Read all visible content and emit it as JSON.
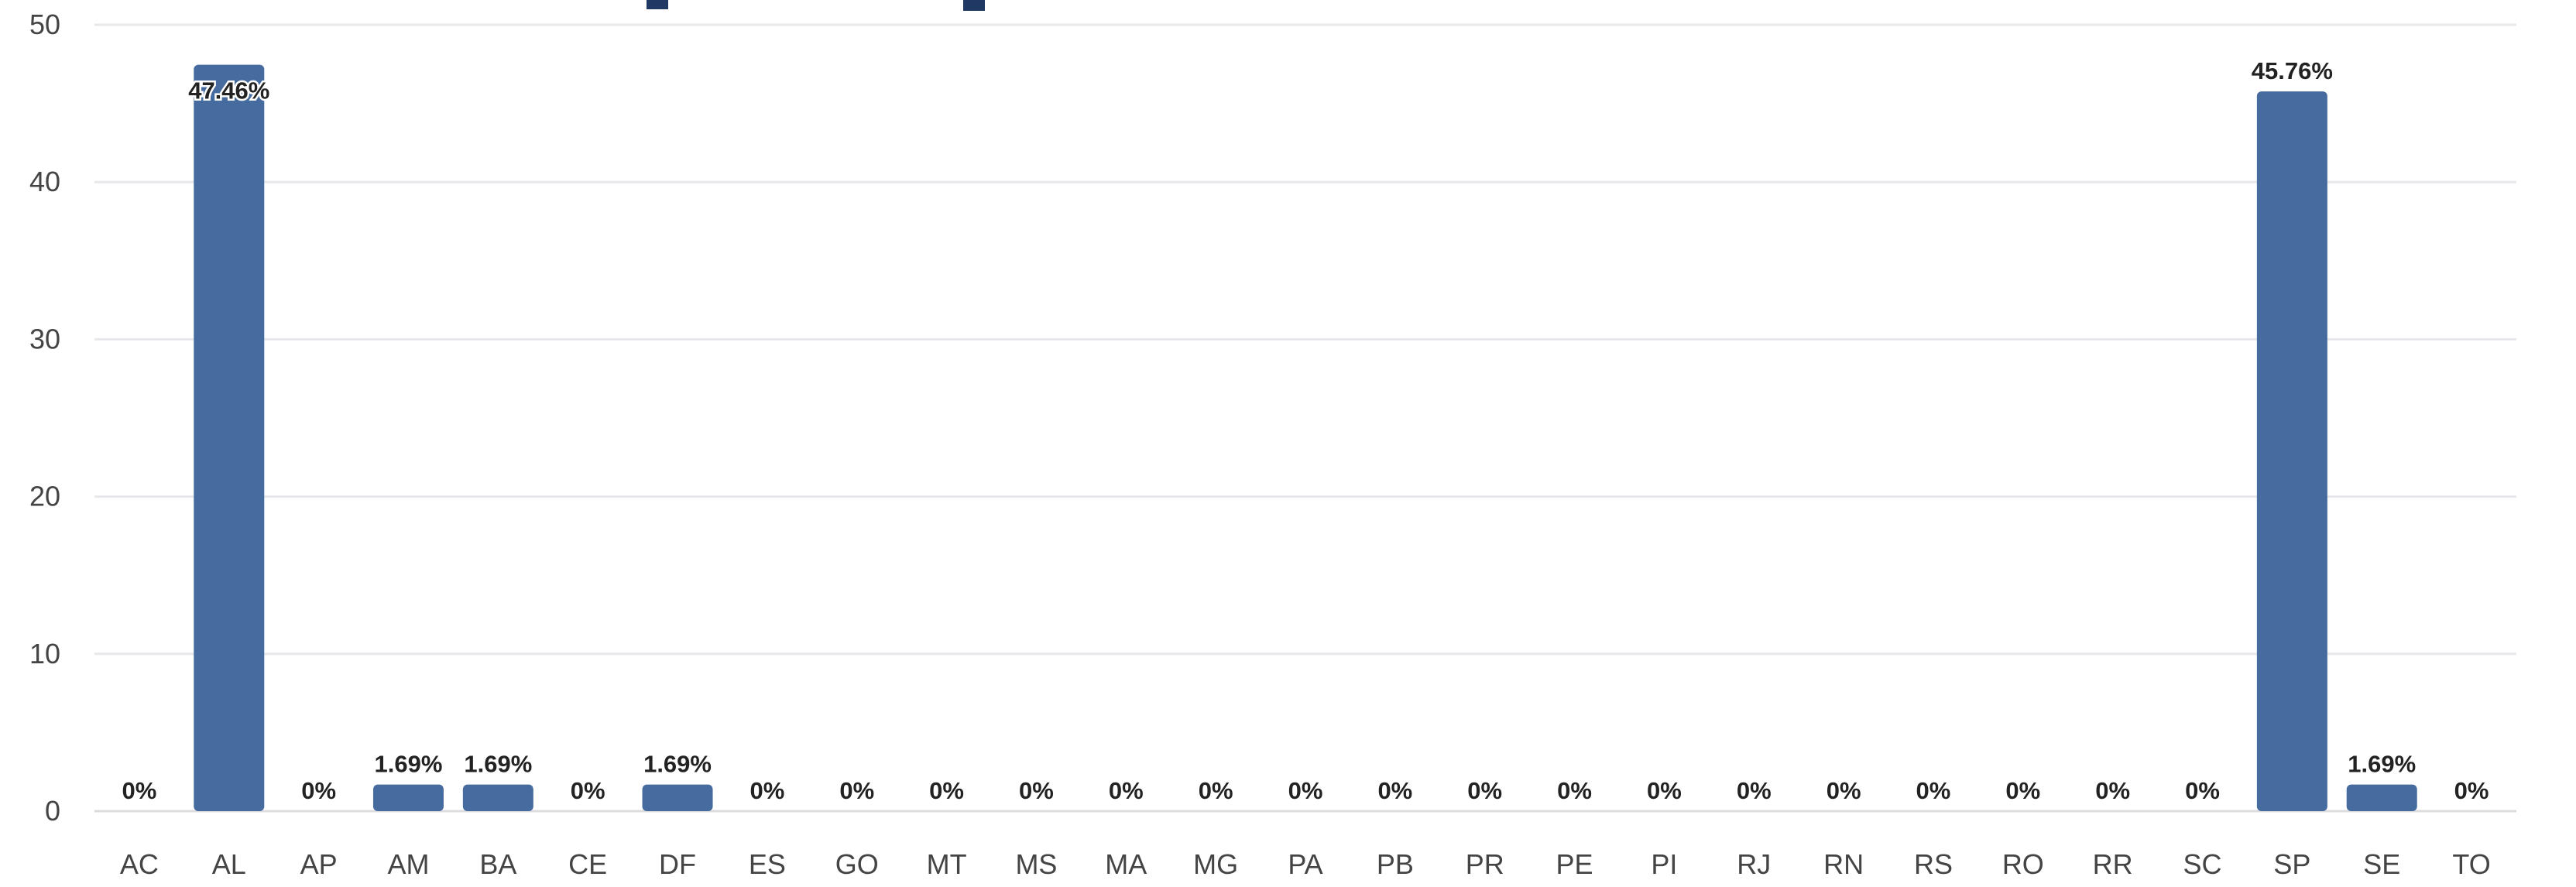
{
  "chart_data": {
    "type": "bar",
    "categories": [
      "AC",
      "AL",
      "AP",
      "AM",
      "BA",
      "CE",
      "DF",
      "ES",
      "GO",
      "MT",
      "MS",
      "MA",
      "MG",
      "PA",
      "PB",
      "PR",
      "PE",
      "PI",
      "RJ",
      "RN",
      "RS",
      "RO",
      "RR",
      "SC",
      "SP",
      "SE",
      "TO"
    ],
    "values": [
      0,
      47.46,
      0,
      1.69,
      1.69,
      0,
      1.69,
      0,
      0,
      0,
      0,
      0,
      0,
      0,
      0,
      0,
      0,
      0,
      0,
      0,
      0,
      0,
      0,
      0,
      45.76,
      1.69,
      0
    ],
    "data_labels": [
      "0%",
      "47.46%",
      "0%",
      "1.69%",
      "1.69%",
      "0%",
      "1.69%",
      "0%",
      "0%",
      "0%",
      "0%",
      "0%",
      "0%",
      "0%",
      "0%",
      "0%",
      "0%",
      "0%",
      "0%",
      "0%",
      "0%",
      "0%",
      "0%",
      "0%",
      "45.76%",
      "1.69%",
      "0%"
    ],
    "y_ticks": [
      "0",
      "10",
      "20",
      "30",
      "40",
      "50"
    ],
    "ylim": [
      0,
      50
    ],
    "grid": true,
    "legend": "none",
    "bar_color": "#466c9f",
    "title": "",
    "xlabel": "",
    "ylabel": ""
  }
}
